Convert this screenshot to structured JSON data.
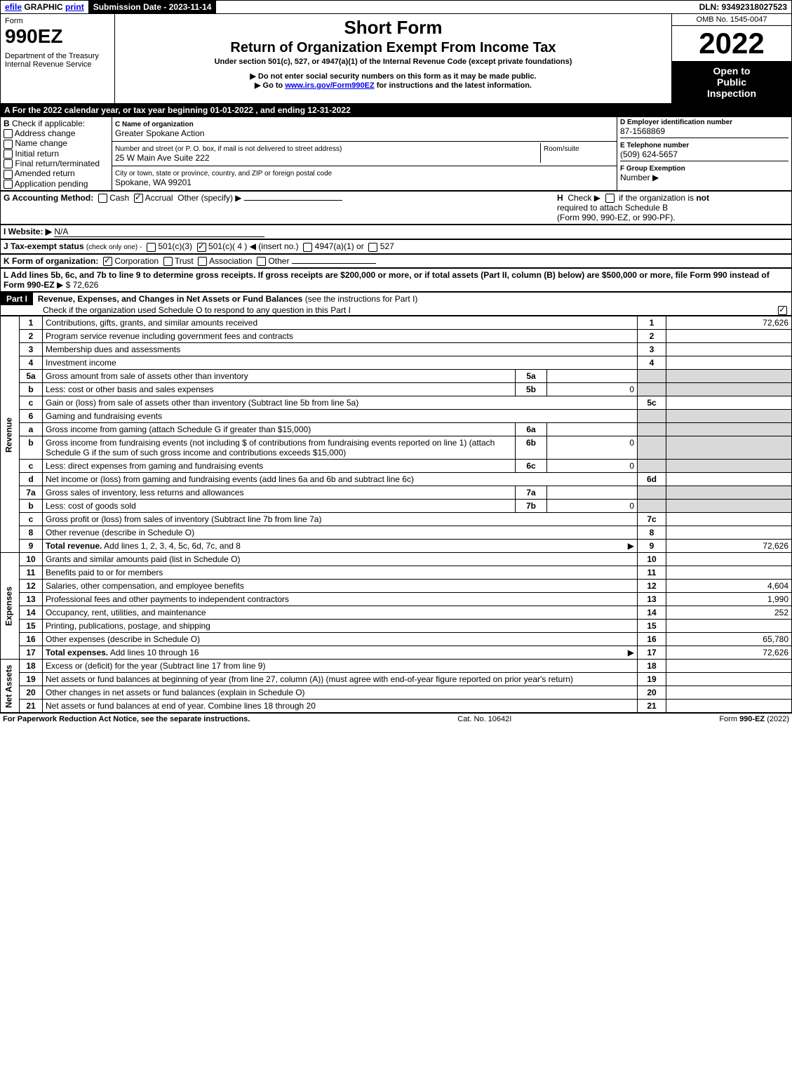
{
  "topbar": {
    "efile_label": "efile",
    "graphic_label": "GRAPHIC",
    "print_label": "print",
    "submission_label": "Submission Date - 2023-11-14",
    "dln_label": "DLN: 93492318027523"
  },
  "header": {
    "form_label": "Form",
    "form_number": "990EZ",
    "dept": "Department of the Treasury",
    "irs": "Internal Revenue Service",
    "title1": "Short Form",
    "title2": "Return of Organization Exempt From Income Tax",
    "subtitle": "Under section 501(c), 527, or 4947(a)(1) of the Internal Revenue Code (except private foundations)",
    "note1": "▶ Do not enter social security numbers on this form as it may be made public.",
    "note2_pre": "▶ Go to ",
    "note2_link": "www.irs.gov/Form990EZ",
    "note2_post": " for instructions and the latest information.",
    "omb": "OMB No. 1545-0047",
    "year": "2022",
    "open1": "Open to",
    "open2": "Public",
    "open3": "Inspection"
  },
  "lineA": "A  For the 2022 calendar year, or tax year beginning 01-01-2022 , and ending 12-31-2022",
  "sectionB": {
    "label": "B",
    "check_label": "Check if applicable:",
    "opts": [
      "Address change",
      "Name change",
      "Initial return",
      "Final return/terminated",
      "Amended return",
      "Application pending"
    ]
  },
  "sectionC": {
    "c_label": "C Name of organization",
    "org_name": "Greater Spokane Action",
    "addr_label": "Number and street (or P. O. box, if mail is not delivered to street address)",
    "room_label": "Room/suite",
    "addr": "25 W Main Ave Suite 222",
    "city_label": "City or town, state or province, country, and ZIP or foreign postal code",
    "city": "Spokane, WA  99201"
  },
  "sectionD": {
    "d_label": "D Employer identification number",
    "ein": "87-1568869",
    "e_label": "E Telephone number",
    "phone": "(509) 624-5657",
    "f_label": "F Group Exemption",
    "f_num_label": "Number  ▶"
  },
  "lineG": {
    "label": "G Accounting Method:",
    "cash": "Cash",
    "accrual": "Accrual",
    "other": "Other (specify) ▶",
    "accrual_checked": true
  },
  "lineH": {
    "label": "H",
    "text1": "Check ▶",
    "text2": "if the organization is ",
    "not": "not",
    "text3": "required to attach Schedule B",
    "text4": "(Form 990, 990-EZ, or 990-PF)."
  },
  "lineI": {
    "label": "I Website: ▶",
    "value": "N/A"
  },
  "lineJ": {
    "label": "J Tax-exempt status",
    "sub": "(check only one) -",
    "opt1": "501(c)(3)",
    "opt2": "501(c)( 4 ) ◀ (insert no.)",
    "opt2_checked": true,
    "opt3": "4947(a)(1) or",
    "opt4": "527"
  },
  "lineK": {
    "label": "K Form of organization:",
    "corp": "Corporation",
    "corp_checked": true,
    "trust": "Trust",
    "assoc": "Association",
    "other": "Other"
  },
  "lineL": {
    "text": "L Add lines 5b, 6c, and 7b to line 9 to determine gross receipts. If gross receipts are $200,000 or more, or if total assets (Part II, column (B) below) are $500,000 or more, file Form 990 instead of Form 990-EZ",
    "arrow": "▶ $",
    "value": "72,626"
  },
  "part1": {
    "label": "Part I",
    "title": "Revenue, Expenses, and Changes in Net Assets or Fund Balances",
    "sub": "(see the instructions for Part I)",
    "check_text": "Check if the organization used Schedule O to respond to any question in this Part I",
    "checked": true
  },
  "revenue_label": "Revenue",
  "expenses_label": "Expenses",
  "netassets_label": "Net Assets",
  "rows": [
    {
      "n": "1",
      "desc": "Contributions, gifts, grants, and similar amounts received",
      "ln": "1",
      "val": "72,626"
    },
    {
      "n": "2",
      "desc": "Program service revenue including government fees and contracts",
      "ln": "2",
      "val": ""
    },
    {
      "n": "3",
      "desc": "Membership dues and assessments",
      "ln": "3",
      "val": ""
    },
    {
      "n": "4",
      "desc": "Investment income",
      "ln": "4",
      "val": ""
    },
    {
      "n": "5a",
      "desc": "Gross amount from sale of assets other than inventory",
      "sub": "5a",
      "subval": ""
    },
    {
      "n": "b",
      "desc": "Less: cost or other basis and sales expenses",
      "sub": "5b",
      "subval": "0"
    },
    {
      "n": "c",
      "desc": "Gain or (loss) from sale of assets other than inventory (Subtract line 5b from line 5a)",
      "ln": "5c",
      "val": ""
    },
    {
      "n": "6",
      "desc": "Gaming and fundraising events"
    },
    {
      "n": "a",
      "desc": "Gross income from gaming (attach Schedule G if greater than $15,000)",
      "sub": "6a",
      "subval": ""
    },
    {
      "n": "b",
      "desc": "Gross income from fundraising events (not including $                of contributions from fundraising events reported on line 1) (attach Schedule G if the sum of such gross income and contributions exceeds $15,000)",
      "sub": "6b",
      "subval": "0"
    },
    {
      "n": "c",
      "desc": "Less: direct expenses from gaming and fundraising events",
      "sub": "6c",
      "subval": "0"
    },
    {
      "n": "d",
      "desc": "Net income or (loss) from gaming and fundraising events (add lines 6a and 6b and subtract line 6c)",
      "ln": "6d",
      "val": ""
    },
    {
      "n": "7a",
      "desc": "Gross sales of inventory, less returns and allowances",
      "sub": "7a",
      "subval": ""
    },
    {
      "n": "b",
      "desc": "Less: cost of goods sold",
      "sub": "7b",
      "subval": "0"
    },
    {
      "n": "c",
      "desc": "Gross profit or (loss) from sales of inventory (Subtract line 7b from line 7a)",
      "ln": "7c",
      "val": ""
    },
    {
      "n": "8",
      "desc": "Other revenue (describe in Schedule O)",
      "ln": "8",
      "val": ""
    },
    {
      "n": "9",
      "desc": "Total revenue. Add lines 1, 2, 3, 4, 5c, 6d, 7c, and 8",
      "ln": "9",
      "val": "72,626",
      "bold": true,
      "arrow": true
    }
  ],
  "exp_rows": [
    {
      "n": "10",
      "desc": "Grants and similar amounts paid (list in Schedule O)",
      "ln": "10",
      "val": ""
    },
    {
      "n": "11",
      "desc": "Benefits paid to or for members",
      "ln": "11",
      "val": ""
    },
    {
      "n": "12",
      "desc": "Salaries, other compensation, and employee benefits",
      "ln": "12",
      "val": "4,604"
    },
    {
      "n": "13",
      "desc": "Professional fees and other payments to independent contractors",
      "ln": "13",
      "val": "1,990"
    },
    {
      "n": "14",
      "desc": "Occupancy, rent, utilities, and maintenance",
      "ln": "14",
      "val": "252"
    },
    {
      "n": "15",
      "desc": "Printing, publications, postage, and shipping",
      "ln": "15",
      "val": ""
    },
    {
      "n": "16",
      "desc": "Other expenses (describe in Schedule O)",
      "ln": "16",
      "val": "65,780"
    },
    {
      "n": "17",
      "desc": "Total expenses. Add lines 10 through 16",
      "ln": "17",
      "val": "72,626",
      "bold": true,
      "arrow": true
    }
  ],
  "net_rows": [
    {
      "n": "18",
      "desc": "Excess or (deficit) for the year (Subtract line 17 from line 9)",
      "ln": "18",
      "val": ""
    },
    {
      "n": "19",
      "desc": "Net assets or fund balances at beginning of year (from line 27, column (A)) (must agree with end-of-year figure reported on prior year's return)",
      "ln": "19",
      "val": ""
    },
    {
      "n": "20",
      "desc": "Other changes in net assets or fund balances (explain in Schedule O)",
      "ln": "20",
      "val": ""
    },
    {
      "n": "21",
      "desc": "Net assets or fund balances at end of year. Combine lines 18 through 20",
      "ln": "21",
      "val": ""
    }
  ],
  "footer": {
    "left": "For Paperwork Reduction Act Notice, see the separate instructions.",
    "mid": "Cat. No. 10642I",
    "right_pre": "Form ",
    "right_bold": "990-EZ",
    "right_post": " (2022)"
  }
}
